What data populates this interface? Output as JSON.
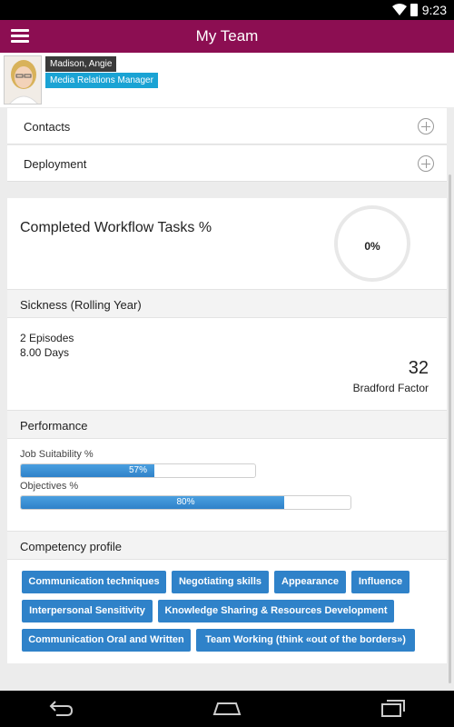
{
  "status_bar": {
    "time": "9:23",
    "icons": [
      "wifi-icon",
      "battery-icon"
    ]
  },
  "app_bar": {
    "title": "My Team",
    "menu_icon": "hamburger-icon"
  },
  "profile": {
    "name": "Madison, Angie",
    "role": "Media Relations Manager"
  },
  "sections": {
    "contacts": "Contacts",
    "deployment": "Deployment"
  },
  "workflow": {
    "title": "Completed Workflow Tasks %",
    "percent_label": "0%",
    "percent": 0
  },
  "sickness": {
    "header": "Sickness (Rolling Year)",
    "episodes": "2 Episodes",
    "days": "8.00 Days",
    "bradford_value": "32",
    "bradford_label": "Bradford Factor"
  },
  "performance": {
    "header": "Performance",
    "items": [
      {
        "label": "Job Suitability %",
        "value_label": "57%",
        "value": 57
      },
      {
        "label": "Objectives %",
        "value_label": "80%",
        "value": 80
      }
    ]
  },
  "competency": {
    "header": "Competency profile",
    "chips": [
      "Communication techniques",
      "Negotiating skills",
      "Appearance",
      "Influence",
      "Interpersonal Sensitivity",
      "Knowledge Sharing & Resources Development",
      "Communication Oral and Written",
      "Team Working (think «out of the borders»)"
    ]
  },
  "colors": {
    "app_bar": "#8c0e52",
    "accent": "#2f82c9",
    "role_tag": "#1aa3d4"
  },
  "nav_bar": {
    "icons": [
      "back-icon",
      "home-icon",
      "recent-apps-icon"
    ]
  }
}
